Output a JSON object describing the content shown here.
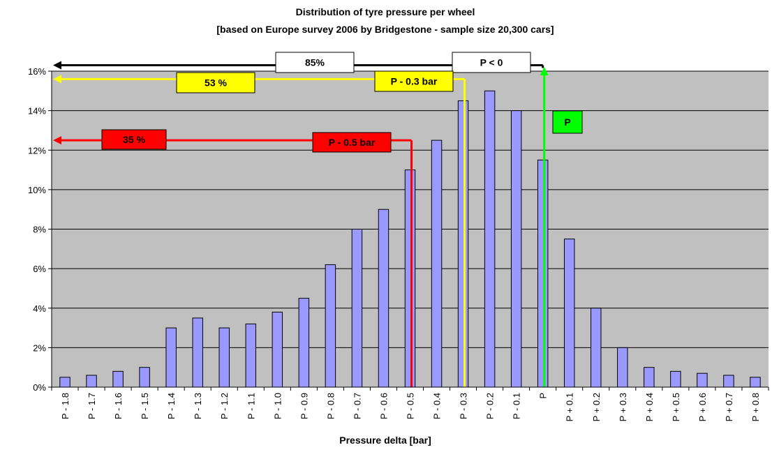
{
  "chart_data": {
    "type": "bar",
    "title": "Distribution of tyre pressure per wheel",
    "subtitle": "[based on Europe survey 2006 by Bridgestone - sample size 20,300 cars]",
    "xlabel": "Pressure delta [bar]",
    "ylabel": "",
    "ylim": [
      0,
      16
    ],
    "y_ticks": [
      0,
      2,
      4,
      6,
      8,
      10,
      12,
      14,
      16
    ],
    "y_tick_suffix": "%",
    "grid": true,
    "legend": "none",
    "categories": [
      "P - 1.8",
      "P - 1.7",
      "P - 1.6",
      "P - 1.5",
      "P - 1.4",
      "P - 1.3",
      "P - 1.2",
      "P - 1.1",
      "P - 1.0",
      "P - 0.9",
      "P - 0.8",
      "P - 0.7",
      "P - 0.6",
      "P - 0.5",
      "P - 0.4",
      "P - 0.3",
      "P - 0.2",
      "P - 0.1",
      "P",
      "P + 0.1",
      "P + 0.2",
      "P + 0.3",
      "P + 0.4",
      "P + 0.5",
      "P + 0.6",
      "P + 0.7",
      "P + 0.8"
    ],
    "values": [
      0.5,
      0.6,
      0.8,
      1.0,
      3.0,
      3.5,
      3.0,
      3.2,
      3.8,
      4.5,
      6.2,
      8.0,
      9.0,
      11.0,
      12.5,
      14.5,
      15.0,
      14.0,
      11.5,
      7.5,
      4.0,
      2.0,
      1.0,
      0.8,
      0.7,
      0.6,
      0.5
    ],
    "annotations": [
      {
        "label": "85%",
        "level": 16.3,
        "category": "P",
        "color": "#000000",
        "box": "#ffffff"
      },
      {
        "label": "P < 0",
        "level": 16.3,
        "category": "P",
        "color": "#000000",
        "box": "#ffffff"
      },
      {
        "label": "53 %",
        "level": 15.6,
        "category": "P - 0.3",
        "color": "#ffff00",
        "box": "#ffff00"
      },
      {
        "label": "P - 0.3 bar",
        "level": 15.6,
        "category": "P - 0.3",
        "color": "#ffff00",
        "box": "#ffff00"
      },
      {
        "label": "35 %",
        "level": 12.5,
        "category": "P - 0.5",
        "color": "#ff0000",
        "box": "#ff0000"
      },
      {
        "label": "P - 0.5 bar",
        "level": 12.5,
        "category": "P - 0.5",
        "color": "#ff0000",
        "box": "#ff0000"
      },
      {
        "label": "P",
        "level": 13.5,
        "category": "P",
        "color": "#00ff00",
        "box": "#00ff00"
      }
    ],
    "colors": {
      "bar_fill": "#9999ff",
      "bar_stroke": "#000000",
      "plot_bg": "#c0c0c0",
      "gridline": "#000000"
    }
  }
}
